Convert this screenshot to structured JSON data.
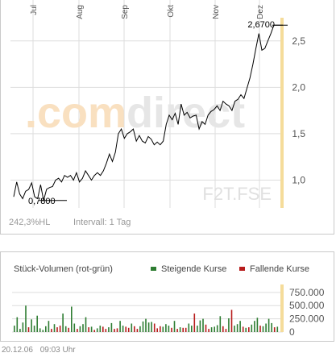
{
  "chart_data": [
    {
      "type": "line",
      "months": [
        "Jul",
        "Aug",
        "Sep",
        "Okt",
        "Nov",
        "Dez"
      ],
      "y_ticks": [
        "1,0",
        "1,5",
        "2,0",
        "2,5"
      ],
      "ylim": [
        0.7,
        2.75
      ],
      "label_low": "0,7800",
      "label_high": "2,6700",
      "watermark": ".comdirect",
      "symbol": "F2T.FSE",
      "change": "242,3%HL",
      "interval": "Intervall: 1 Tag",
      "series": [
        {
          "x": [
            0,
            2,
            4,
            6,
            8,
            10,
            12,
            14,
            16,
            18,
            20,
            22,
            24,
            26,
            28,
            30,
            32,
            34,
            36,
            38,
            40,
            42,
            44,
            46,
            48,
            50,
            52,
            54,
            56,
            58,
            60,
            62,
            64,
            66,
            68,
            70,
            72,
            74,
            76,
            78,
            80,
            82,
            84,
            86,
            88,
            90,
            92,
            94,
            96,
            98,
            100,
            102,
            104,
            106,
            108,
            110,
            112,
            114,
            116,
            118,
            120,
            122,
            124,
            126,
            128,
            130,
            132,
            134,
            136,
            138,
            140,
            142,
            144,
            146,
            148,
            150,
            152,
            154,
            156,
            158,
            160,
            162,
            164,
            166,
            168,
            170,
            172,
            174,
            176,
            178,
            180
          ],
          "y": [
            0.82,
            0.98,
            0.85,
            0.8,
            0.88,
            0.9,
            0.97,
            0.82,
            0.8,
            0.95,
            0.78,
            0.9,
            0.92,
            0.93,
            1.0,
            1.02,
            0.98,
            1.05,
            1.03,
            1.05,
            1.0,
            1.08,
            0.98,
            1.02,
            1.1,
            1.05,
            1.0,
            1.05,
            1.08,
            1.05,
            1.1,
            1.18,
            1.28,
            1.2,
            1.3,
            1.5,
            1.55,
            1.45,
            1.5,
            1.52,
            1.55,
            1.42,
            1.48,
            1.42,
            1.4,
            1.47,
            1.44,
            1.38,
            1.41,
            1.38,
            1.42,
            1.6,
            1.7,
            1.65,
            1.72,
            1.6,
            1.82,
            1.7,
            1.73,
            1.67,
            1.69,
            1.7,
            1.55,
            1.63,
            1.6,
            1.7,
            1.74,
            1.76,
            1.8,
            1.75,
            1.85,
            1.82,
            1.8,
            1.75,
            1.85,
            1.87,
            1.92,
            1.88,
            1.99,
            2.1,
            2.25,
            2.42,
            2.58,
            2.4,
            2.42,
            2.5,
            2.58,
            2.67,
            2.67,
            2.67,
            2.67
          ]
        }
      ]
    },
    {
      "type": "bar",
      "title": "Stück-Volumen (rot-grün)",
      "legend": [
        "Steigende Kurse",
        "Fallende Kurse"
      ],
      "y_ticks": [
        "750.000",
        "500.000",
        "250.000",
        "0"
      ],
      "ylim": [
        0,
        900000
      ],
      "values": [
        120000,
        280000,
        60000,
        180000,
        500000,
        90000,
        240000,
        120000,
        310000,
        70000,
        40000,
        110000,
        210000,
        60000,
        150000,
        90000,
        120000,
        350000,
        110000,
        80000,
        480000,
        160000,
        60000,
        110000,
        150000,
        280000,
        90000,
        100000,
        40000,
        70000,
        120000,
        100000,
        60000,
        90000,
        170000,
        60000,
        70000,
        210000,
        120000,
        100000,
        80000,
        160000,
        110000,
        60000,
        110000,
        200000,
        250000,
        180000,
        190000,
        160000,
        70000,
        110000,
        100000,
        150000,
        120000,
        80000,
        210000,
        60000,
        90000,
        80000,
        80000,
        160000,
        120000,
        350000,
        120000,
        220000,
        250000,
        140000,
        60000,
        90000,
        100000,
        130000,
        300000,
        110000,
        60000,
        260000,
        420000,
        120000,
        150000,
        210000,
        100000,
        80000,
        90000,
        140000,
        210000,
        270000,
        120000,
        110000,
        160000,
        250000,
        170000,
        90000,
        100000
      ],
      "rising": [
        1,
        1,
        1,
        1,
        1,
        0,
        1,
        1,
        1,
        1,
        1,
        1,
        1,
        0,
        1,
        0,
        0,
        1,
        1,
        0,
        1,
        1,
        0,
        1,
        1,
        1,
        0,
        1,
        0,
        1,
        1,
        0,
        0,
        1,
        1,
        0,
        0,
        1,
        1,
        0,
        0,
        1,
        0,
        0,
        1,
        1,
        1,
        1,
        1,
        0,
        0,
        0,
        1,
        1,
        1,
        0,
        1,
        0,
        1,
        0,
        0,
        1,
        1,
        0,
        1,
        1,
        1,
        0,
        0,
        1,
        1,
        1,
        1,
        0,
        0,
        1,
        0,
        1,
        1,
        1,
        0,
        1,
        0,
        1,
        1,
        1,
        0,
        1,
        1,
        1,
        1,
        0,
        1
      ]
    }
  ],
  "footer": {
    "date": "20.12.06",
    "time": "09:03 Uhr"
  },
  "colors": {
    "line": "#000000",
    "grid": "#dddddd",
    "rising": "#2e7d32",
    "falling": "#b71c1c",
    "highlight": "#f5dc9a",
    "watermark_orange": "#f9e0c0",
    "watermark_grey": "#e6e6e6"
  }
}
